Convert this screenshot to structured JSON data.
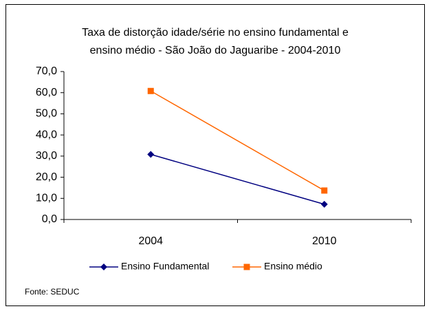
{
  "chart_data": {
    "type": "line",
    "title": [
      "Taxa de distorção idade/série no ensino fundamental e",
      "ensino médio - São João do Jaguaribe -  2004-2010"
    ],
    "categories": [
      "2004",
      "2010"
    ],
    "series": [
      {
        "name": "Ensino Fundamental",
        "color": "#000080",
        "marker": "diamond",
        "values": [
          30.8,
          7.2
        ]
      },
      {
        "name": "Ensino médio",
        "color": "#ff6600",
        "marker": "square",
        "values": [
          60.8,
          13.7
        ]
      }
    ],
    "ylim": [
      0,
      70
    ],
    "yticks": [
      {
        "value": 0,
        "label": "0,0"
      },
      {
        "value": 10,
        "label": "10,0"
      },
      {
        "value": 20,
        "label": "20,0"
      },
      {
        "value": 30,
        "label": "30,0"
      },
      {
        "value": 40,
        "label": "40,0"
      },
      {
        "value": 50,
        "label": "50,0"
      },
      {
        "value": 60,
        "label": "60,0"
      },
      {
        "value": 70,
        "label": "70,0"
      }
    ],
    "legend": "bottom",
    "source": "Fonte: SEDUC"
  }
}
